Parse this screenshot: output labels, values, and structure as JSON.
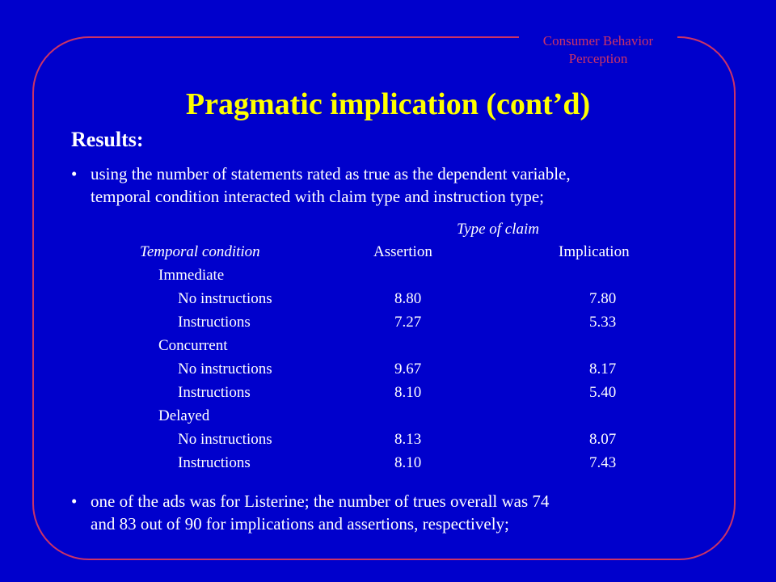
{
  "header_tag": {
    "line1": "Consumer Behavior",
    "line2": "Perception"
  },
  "title": "Pragmatic implication (cont’d)",
  "results_heading": "Results:",
  "bullet_glyph": "•",
  "bullets": [
    {
      "line1": "using the number of statements rated as true as the dependent variable,",
      "line2": "temporal condition interacted with claim type and instruction type;"
    },
    {
      "line1": "one of the ads was for Listerine; the number of trues overall was 74",
      "line2": "and 83 out of 90 for implications and assertions, respectively;"
    }
  ],
  "table": {
    "spanner_header": "Type of claim",
    "row_header": "Temporal condition",
    "columns": [
      "Assertion",
      "Implication"
    ],
    "groups": [
      {
        "name": "Immediate",
        "rows": [
          {
            "label": "No instructions",
            "assertion": "8.80",
            "implication": "7.80"
          },
          {
            "label": "Instructions",
            "assertion": "7.27",
            "implication": "5.33"
          }
        ]
      },
      {
        "name": "Concurrent",
        "rows": [
          {
            "label": "No instructions",
            "assertion": "9.67",
            "implication": "8.17"
          },
          {
            "label": "Instructions",
            "assertion": "8.10",
            "implication": "5.40"
          }
        ]
      },
      {
        "name": "Delayed",
        "rows": [
          {
            "label": "No instructions",
            "assertion": "8.13",
            "implication": "8.07"
          },
          {
            "label": "Instructions",
            "assertion": "8.10",
            "implication": "7.43"
          }
        ]
      }
    ]
  },
  "colors": {
    "background": "#0000cc",
    "title": "#ffff00",
    "frame": "#cc3366",
    "text": "#ffffff"
  }
}
